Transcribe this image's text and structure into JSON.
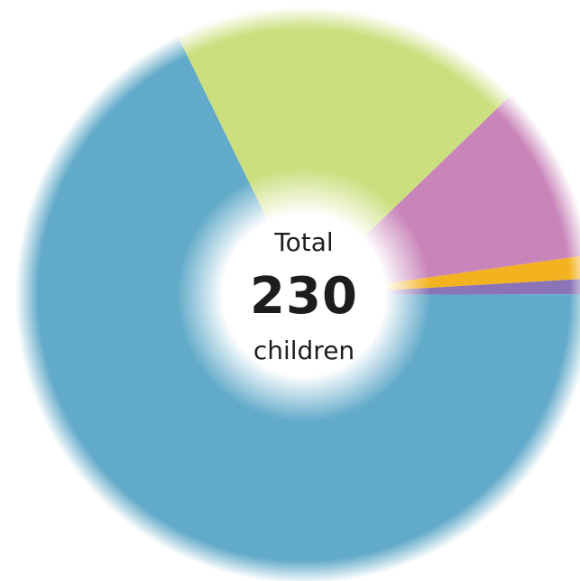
{
  "center": {
    "label": "Total",
    "value": "230",
    "unit": "children"
  },
  "chart_data": {
    "type": "pie",
    "style": "donut",
    "start_angle_deg": -26,
    "total": 230,
    "slices": [
      {
        "value": 46,
        "color": "#cbdf7f"
      },
      {
        "value": 23,
        "color": "#c985b9"
      },
      {
        "value": 3,
        "color": "#f3b21f"
      },
      {
        "value": 2,
        "color": "#8a73b7"
      },
      {
        "value": 156,
        "color": "#62aac9"
      }
    ]
  }
}
